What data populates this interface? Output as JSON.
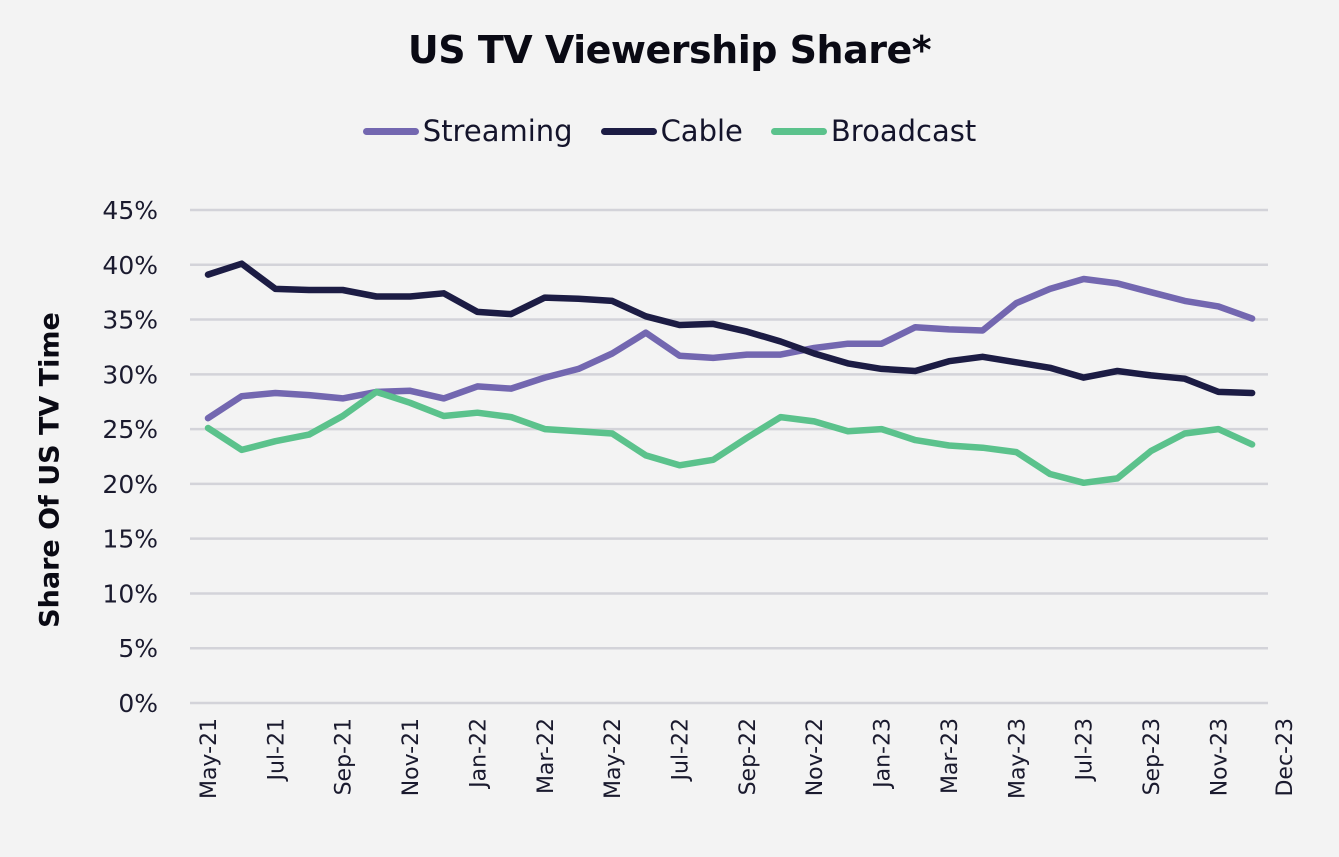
{
  "chart_data": {
    "type": "line",
    "title": "US TV Viewership Share*",
    "xlabel": "",
    "ylabel": "Share Of US TV Time",
    "ylim": [
      0,
      45
    ],
    "yticks": [
      "0%",
      "5%",
      "10%",
      "15%",
      "20%",
      "25%",
      "30%",
      "35%",
      "40%",
      "45%"
    ],
    "ytick_values": [
      0,
      5,
      10,
      15,
      20,
      25,
      30,
      35,
      40,
      45
    ],
    "grid": true,
    "legend_position": "top-center",
    "x": [
      "May-21",
      "Jun-21",
      "Jul-21",
      "Aug-21",
      "Sep-21",
      "Oct-21",
      "Nov-21",
      "Dec-21",
      "Jan-22",
      "Feb-22",
      "Mar-22",
      "Apr-22",
      "May-22",
      "Jun-22",
      "Jul-22",
      "Aug-22",
      "Sep-22",
      "Oct-22",
      "Nov-22",
      "Dec-22",
      "Jan-23",
      "Feb-23",
      "Mar-23",
      "Apr-23",
      "May-23",
      "Jun-23",
      "Jul-23",
      "Aug-23",
      "Sep-23",
      "Oct-23",
      "Nov-23",
      "Dec-23"
    ],
    "xtick_labels": [
      "May-21",
      "Jul-21",
      "Sep-21",
      "Nov-21",
      "Jan-22",
      "Mar-22",
      "May-22",
      "Jul-22",
      "Sep-22",
      "Nov-22",
      "Jan-23",
      "Mar-23",
      "May-23",
      "Jul-23",
      "Sep-23",
      "Nov-23",
      "Dec-23"
    ],
    "series": [
      {
        "name": "Streaming",
        "color": "#7367b0",
        "values": [
          26.0,
          28.0,
          28.3,
          28.1,
          27.8,
          28.4,
          28.5,
          27.8,
          28.9,
          28.7,
          29.7,
          30.5,
          31.9,
          33.8,
          31.7,
          31.5,
          31.8,
          31.8,
          32.4,
          32.8,
          32.8,
          34.3,
          34.1,
          34.0,
          36.5,
          37.8,
          38.7,
          38.3,
          37.5,
          36.7,
          36.2,
          35.1
        ]
      },
      {
        "name": "Cable",
        "color": "#1c1c44",
        "values": [
          39.1,
          40.1,
          37.8,
          37.7,
          37.7,
          37.1,
          37.1,
          37.4,
          35.7,
          35.5,
          37.0,
          36.9,
          36.7,
          35.3,
          34.5,
          34.6,
          33.9,
          33.0,
          31.9,
          31.0,
          30.5,
          30.3,
          31.2,
          31.6,
          31.1,
          30.6,
          29.7,
          30.3,
          29.9,
          29.6,
          28.4,
          28.3
        ]
      },
      {
        "name": "Broadcast",
        "color": "#5bc28c",
        "values": [
          25.1,
          23.1,
          23.9,
          24.5,
          26.2,
          28.4,
          27.4,
          26.2,
          26.5,
          26.1,
          25.0,
          24.8,
          24.6,
          22.6,
          21.7,
          22.2,
          24.2,
          26.1,
          25.7,
          24.8,
          25.0,
          24.0,
          23.5,
          23.3,
          22.9,
          20.9,
          20.1,
          20.5,
          23.0,
          24.6,
          25.0,
          23.6
        ]
      }
    ]
  },
  "colors": {
    "background": "#f3f3f3",
    "gridline": "#d3d3d9"
  }
}
